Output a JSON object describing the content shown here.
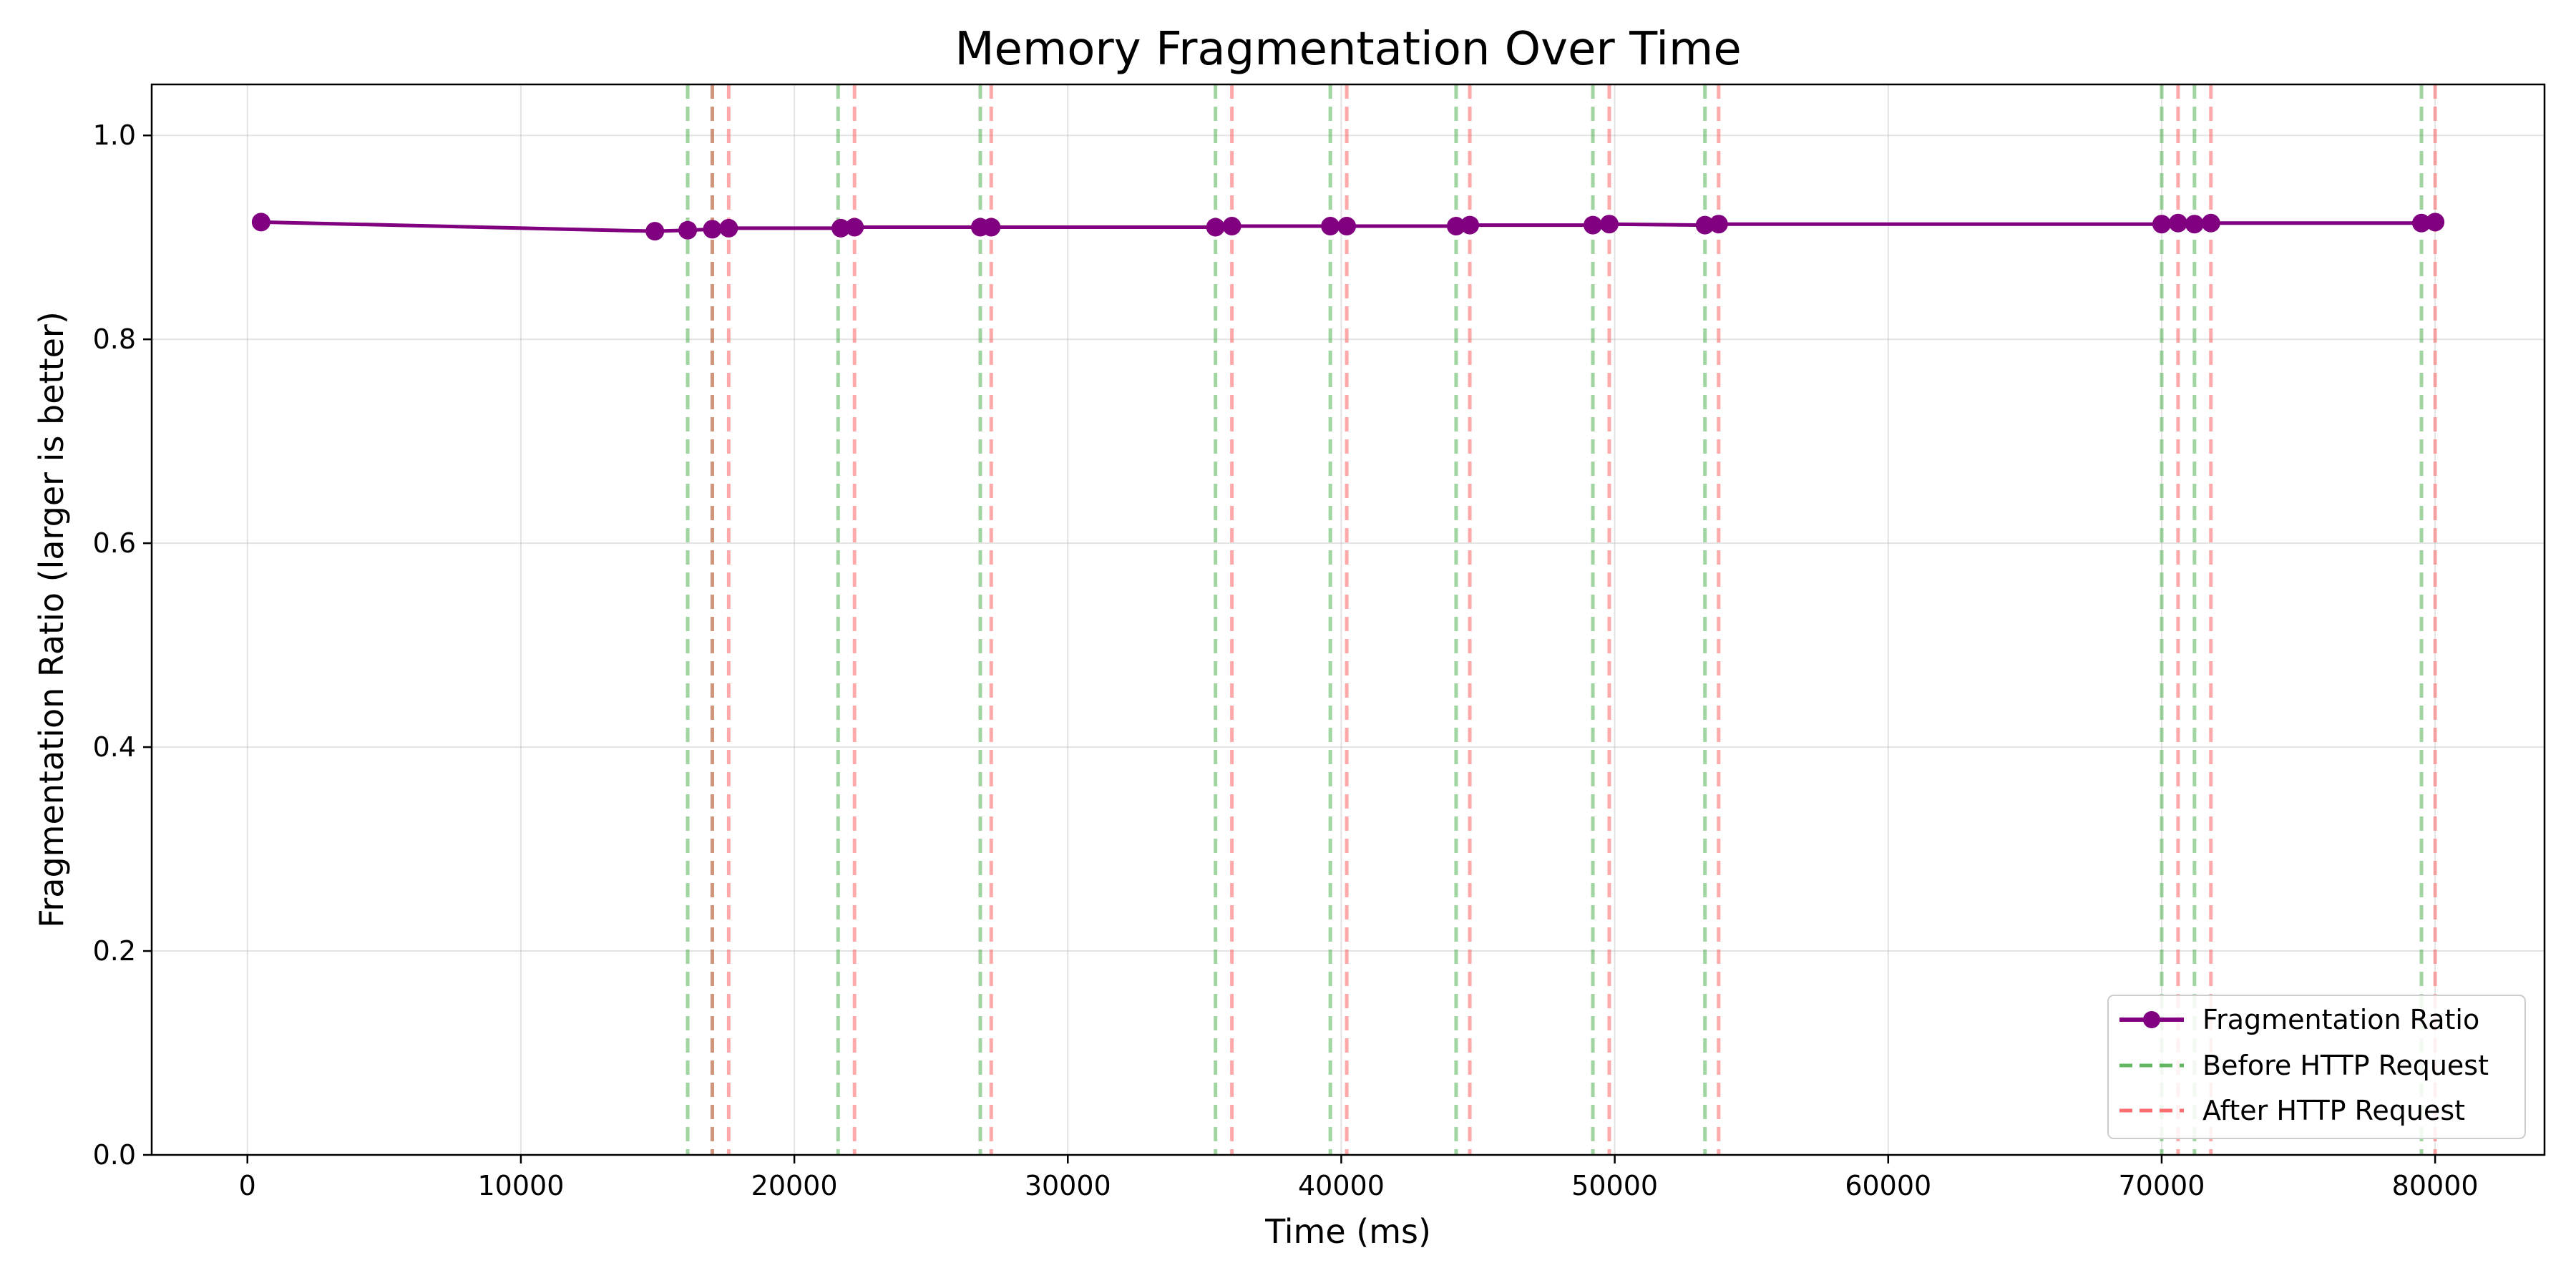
{
  "chart_data": {
    "type": "line",
    "title": "Memory Fragmentation Over Time",
    "xlabel": "Time (ms)",
    "ylabel": "Fragmentation Ratio (larger is better)",
    "xlim": [
      -3500,
      84000
    ],
    "ylim": [
      0.0,
      1.05
    ],
    "xticks": [
      0,
      10000,
      20000,
      30000,
      40000,
      50000,
      60000,
      70000,
      80000
    ],
    "yticks": [
      0.0,
      0.2,
      0.4,
      0.6,
      0.8,
      1.0
    ],
    "xtick_labels": [
      "0",
      "10000",
      "20000",
      "30000",
      "40000",
      "50000",
      "60000",
      "70000",
      "80000"
    ],
    "ytick_labels": [
      "0.0",
      "0.2",
      "0.4",
      "0.6",
      "0.8",
      "1.0"
    ],
    "grid": true,
    "legend_position": "bottom-right",
    "series": [
      {
        "name": "Fragmentation Ratio",
        "color": "#800080",
        "style": "solid-line-with-circle-markers",
        "x": [
          500,
          14900,
          16100,
          17000,
          17600,
          21700,
          22200,
          26800,
          27200,
          35400,
          36000,
          39600,
          40200,
          44200,
          44700,
          49200,
          49800,
          53300,
          53800,
          70000,
          70600,
          71200,
          71800,
          79500,
          80000
        ],
        "y": [
          0.915,
          0.906,
          0.907,
          0.908,
          0.909,
          0.909,
          0.91,
          0.91,
          0.91,
          0.91,
          0.911,
          0.911,
          0.911,
          0.911,
          0.912,
          0.912,
          0.913,
          0.912,
          0.913,
          0.913,
          0.914,
          0.913,
          0.914,
          0.914,
          0.915
        ]
      }
    ],
    "vertical_lines": [
      {
        "name": "Before HTTP Request",
        "color": "#2ca02c",
        "style": "dashed",
        "x": [
          16100,
          17000,
          21600,
          26800,
          35400,
          39600,
          44200,
          49200,
          53300,
          70000,
          71200,
          79500
        ]
      },
      {
        "name": "After HTTP Request",
        "color": "#ff5555",
        "style": "dashed",
        "x": [
          17000,
          17600,
          22200,
          27200,
          36000,
          40200,
          44700,
          49800,
          53800,
          70600,
          71800,
          80000
        ]
      }
    ]
  }
}
